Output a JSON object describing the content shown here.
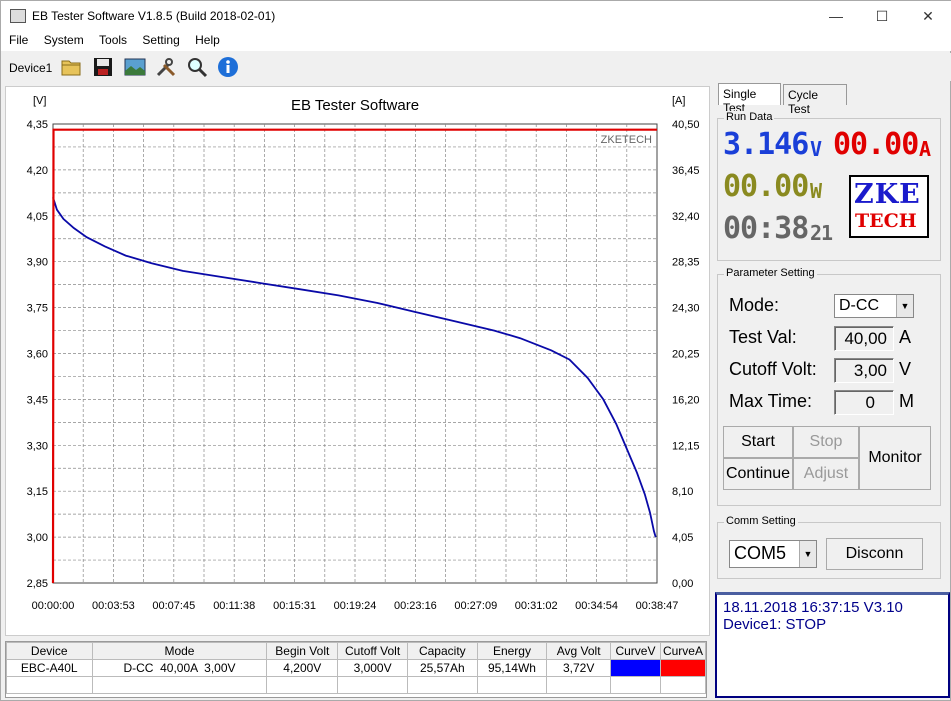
{
  "window": {
    "title": "EB Tester Software V1.8.5 (Build 2018-02-01)",
    "minimize": "—",
    "maximize": "☐",
    "close": "✕"
  },
  "menu": [
    "File",
    "System",
    "Tools",
    "Setting",
    "Help"
  ],
  "toolbar": {
    "device_label": "Device1",
    "icons": [
      "open-folder-icon",
      "save-icon",
      "picture-icon",
      "tools-icon",
      "zoom-icon",
      "info-icon"
    ]
  },
  "chart": {
    "title": "EB Tester Software",
    "watermark": "ZKETECH",
    "left_unit": "[V]",
    "right_unit": "[A]",
    "colors": {
      "voltage": "#0a0aa8",
      "current": "#e00000",
      "grid": "#888888"
    }
  },
  "chart_data": {
    "type": "line",
    "title": "EB Tester Software",
    "ylabel": "[V]",
    "y2label": "[A]",
    "ylim": [
      2.85,
      4.35
    ],
    "y2lim": [
      0,
      40.5
    ],
    "xlim_seconds": [
      0,
      2327
    ],
    "yticks": [
      "4,35",
      "4,20",
      "4,05",
      "3,90",
      "3,75",
      "3,60",
      "3,45",
      "3,30",
      "3,15",
      "3,00",
      "2,85"
    ],
    "y2ticks": [
      "40,50",
      "36,45",
      "32,40",
      "28,35",
      "24,30",
      "20,25",
      "16,20",
      "12,15",
      "8,10",
      "4,05",
      "0,00"
    ],
    "xticks": [
      "00:00:00",
      "00:03:53",
      "00:07:45",
      "00:11:38",
      "00:15:31",
      "00:19:24",
      "00:23:16",
      "00:27:09",
      "00:31:02",
      "00:34:54",
      "00:38:47"
    ],
    "grid": true,
    "series": [
      {
        "axis": "left",
        "color": "#0a0aa8",
        "x": [
          0,
          15,
          40,
          80,
          130,
          200,
          280,
          380,
          500,
          650,
          800,
          950,
          1100,
          1250,
          1400,
          1550,
          1700,
          1800,
          1860,
          1920,
          1990,
          2060,
          2120,
          2170,
          2210,
          2250,
          2280,
          2300,
          2315,
          2322
        ],
        "y": [
          4.11,
          4.07,
          4.04,
          4.01,
          3.98,
          3.95,
          3.92,
          3.895,
          3.87,
          3.85,
          3.83,
          3.81,
          3.79,
          3.765,
          3.735,
          3.705,
          3.675,
          3.65,
          3.63,
          3.61,
          3.58,
          3.52,
          3.45,
          3.37,
          3.29,
          3.21,
          3.14,
          3.08,
          3.02,
          3.0
        ]
      },
      {
        "axis": "right",
        "color": "#e00000",
        "x": [
          0,
          2,
          4,
          2327
        ],
        "y": [
          0,
          40,
          40,
          40
        ]
      }
    ]
  },
  "table": {
    "headers": [
      "Device",
      "Mode",
      "Begin Volt",
      "Cutoff Volt",
      "Capacity",
      "Energy",
      "Avg Volt",
      "CurveV",
      "CurveA"
    ],
    "row": [
      "EBC-A40L",
      "D-CC  40,00A  3,00V",
      "4,200V",
      "3,000V",
      "25,57Ah",
      "95,14Wh",
      "3,72V"
    ],
    "curve_colors": [
      "#0000ff",
      "#ff0000"
    ]
  },
  "right": {
    "tabs": [
      "Single Test",
      "Cycle Test"
    ],
    "run_data_title": "Run Data",
    "voltage": "3.146",
    "voltage_unit": "V",
    "current": "00.00",
    "current_unit": "A",
    "power": "00.00",
    "power_unit": "W",
    "time": "00:38",
    "time_tail": "21",
    "logo_top": "ZKE",
    "logo_bottom": "TECH",
    "param_title": "Parameter Setting",
    "mode_label": "Mode:",
    "mode_value": "D-CC",
    "testval_label": "Test Val:",
    "testval_value": "40,00",
    "testval_unit": "A",
    "cutoff_label": "Cutoff Volt:",
    "cutoff_value": "3,00",
    "cutoff_unit": "V",
    "maxtime_label": "Max Time:",
    "maxtime_value": "0",
    "maxtime_unit": "M",
    "start": "Start",
    "stop": "Stop",
    "continue": "Continue",
    "adjust": "Adjust",
    "monitor": "Monitor",
    "comm_title": "Comm Setting",
    "port": "COM5",
    "disconn": "Disconn",
    "status_line1": "18.11.2018 16:37:15  V3.10",
    "status_line2": "Device1: STOP"
  }
}
